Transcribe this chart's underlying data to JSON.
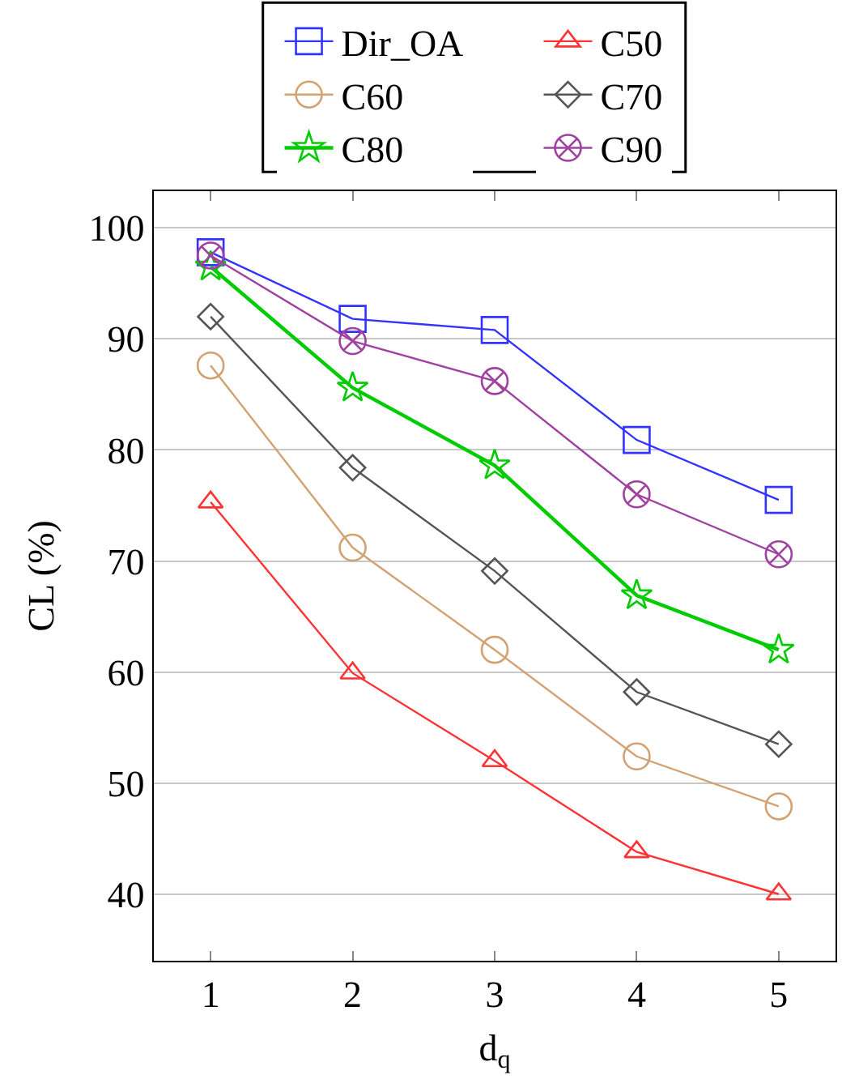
{
  "chart_data": {
    "type": "line",
    "xlabel": "d$_{q}$",
    "ylabel": "CL (%)",
    "x": [
      1,
      2,
      3,
      4,
      5
    ],
    "xlim": [
      0.6,
      5.4
    ],
    "xticks": [
      1,
      2,
      3,
      4,
      5
    ],
    "ylim": [
      34,
      103.3
    ],
    "yticks": [
      40,
      50,
      60,
      70,
      80,
      90,
      100
    ],
    "grid": "y",
    "legend": "top",
    "series": [
      {
        "name": "Dir_OA",
        "color": "#3333ff",
        "marker": "square",
        "values": [
          97.8,
          91.8,
          90.8,
          80.9,
          75.5
        ]
      },
      {
        "name": "C50",
        "color": "#ff3333",
        "marker": "triangle",
        "values": [
          75.3,
          59.9,
          52.0,
          43.8,
          40.0
        ]
      },
      {
        "name": "C60",
        "color": "#d2a272",
        "marker": "circle",
        "values": [
          87.6,
          71.2,
          62.0,
          52.4,
          47.9
        ]
      },
      {
        "name": "C70",
        "color": "#555555",
        "marker": "diamond",
        "values": [
          92.0,
          78.4,
          69.1,
          58.2,
          53.5
        ]
      },
      {
        "name": "C80",
        "color": "#00cc00",
        "marker": "star",
        "values": [
          96.5,
          85.6,
          78.6,
          66.9,
          62.0
        ]
      },
      {
        "name": "C90",
        "color": "#a040a0",
        "marker": "cross",
        "values": [
          97.5,
          89.8,
          86.2,
          76.0,
          70.6
        ]
      }
    ]
  }
}
